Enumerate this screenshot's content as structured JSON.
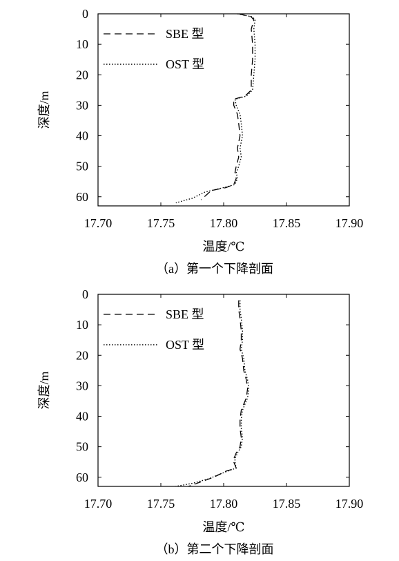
{
  "chart_data": [
    {
      "type": "line",
      "caption": "（a）第一个下降剖面",
      "xlabel": "温度/℃",
      "ylabel": "深度/m",
      "xlim": [
        17.7,
        17.9
      ],
      "ylim": [
        0,
        63
      ],
      "y_inverted": true,
      "x_ticks": [
        "17.70",
        "17.75",
        "17.80",
        "17.85",
        "17.90"
      ],
      "y_ticks": [
        "0",
        "10",
        "20",
        "30",
        "40",
        "50",
        "60"
      ],
      "legend_position": "top-left",
      "series": [
        {
          "name": "SBE 型",
          "style": "dashed",
          "x": [
            17.812,
            17.822,
            17.824,
            17.822,
            17.823,
            17.823,
            17.822,
            17.822,
            17.817,
            17.808,
            17.808,
            17.811,
            17.812,
            17.813,
            17.811,
            17.812,
            17.81,
            17.809,
            17.81,
            17.808,
            17.802,
            17.79,
            17.786,
            17.782
          ],
          "y": [
            0,
            1,
            2,
            5,
            10,
            15,
            20,
            25,
            27,
            28,
            30,
            33,
            36,
            40,
            44,
            47,
            50,
            52,
            54,
            56,
            57,
            58,
            59.5,
            61
          ]
        },
        {
          "name": "OST 型",
          "style": "dotted",
          "x": [
            17.811,
            17.823,
            17.825,
            17.824,
            17.825,
            17.825,
            17.824,
            17.823,
            17.818,
            17.809,
            17.81,
            17.813,
            17.814,
            17.815,
            17.813,
            17.814,
            17.812,
            17.81,
            17.811,
            17.809,
            17.8,
            17.785,
            17.775,
            17.762
          ],
          "y": [
            0,
            1,
            2,
            5,
            10,
            15,
            20,
            25,
            27,
            28,
            30,
            33,
            36,
            40,
            44,
            47,
            50,
            52,
            54,
            56,
            57,
            58.5,
            60.5,
            62
          ]
        }
      ]
    },
    {
      "type": "line",
      "caption": "（b）第二个下降剖面",
      "xlabel": "温度/℃",
      "ylabel": "深度/m",
      "xlim": [
        17.7,
        17.9
      ],
      "ylim": [
        0,
        63
      ],
      "y_inverted": true,
      "x_ticks": [
        "17.70",
        "17.75",
        "17.80",
        "17.85",
        "17.90"
      ],
      "y_ticks": [
        "0",
        "10",
        "20",
        "30",
        "40",
        "50",
        "60"
      ],
      "legend_position": "top-left",
      "series": [
        {
          "name": "SBE 型",
          "style": "dashed",
          "x": [
            17.812,
            17.812,
            17.813,
            17.814,
            17.814,
            17.813,
            17.815,
            17.816,
            17.818,
            17.819,
            17.818,
            17.816,
            17.814,
            17.813,
            17.813,
            17.814,
            17.813,
            17.81,
            17.808,
            17.808,
            17.81,
            17.802,
            17.792,
            17.782,
            17.772
          ],
          "y": [
            2,
            5,
            8,
            12,
            15,
            18,
            21,
            25,
            28,
            31,
            34,
            36,
            38,
            41,
            44,
            47,
            50,
            52,
            54,
            55,
            57,
            58,
            60,
            61.5,
            63
          ]
        },
        {
          "name": "OST 型",
          "style": "dotted",
          "x": [
            17.813,
            17.813,
            17.814,
            17.815,
            17.815,
            17.814,
            17.816,
            17.817,
            17.819,
            17.82,
            17.819,
            17.817,
            17.815,
            17.814,
            17.814,
            17.815,
            17.814,
            17.811,
            17.809,
            17.809,
            17.81,
            17.8,
            17.788,
            17.775,
            17.762
          ],
          "y": [
            2,
            5,
            8,
            12,
            15,
            18,
            21,
            25,
            28,
            31,
            34,
            36,
            38,
            41,
            44,
            47,
            50,
            52,
            54,
            55,
            57,
            58.5,
            60.5,
            62,
            63
          ]
        }
      ]
    }
  ]
}
